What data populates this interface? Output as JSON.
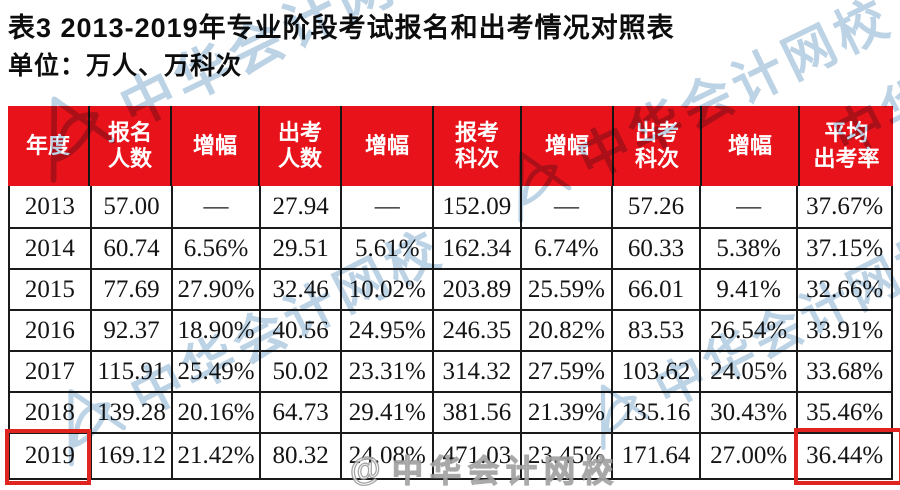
{
  "title": "表3  2013-2019年专业阶段考试报名和出考情况对照表",
  "subtitle": "单位：万人、万科次",
  "colors": {
    "header_red": "#e8121a",
    "highlight_red": "#e02420",
    "watermark_blue": "#8fb4d4",
    "border_dark": "#1a1a1a"
  },
  "table": {
    "columns": [
      "年度",
      "报名\n人数",
      "增幅",
      "出考\n人数",
      "增幅",
      "报考\n科次",
      "增幅",
      "出考\n科次",
      "增幅",
      "平均\n出考率"
    ],
    "rows": [
      [
        "2013",
        "57.00",
        "—",
        "27.94",
        "—",
        "152.09",
        "—",
        "57.26",
        "—",
        "37.67%"
      ],
      [
        "2014",
        "60.74",
        "6.56%",
        "29.51",
        "5.61%",
        "162.34",
        "6.74%",
        "60.33",
        "5.38%",
        "37.15%"
      ],
      [
        "2015",
        "77.69",
        "27.90%",
        "32.46",
        "10.02%",
        "203.89",
        "25.59%",
        "66.01",
        "9.41%",
        "32.66%"
      ],
      [
        "2016",
        "92.37",
        "18.90%",
        "40.56",
        "24.95%",
        "246.35",
        "20.82%",
        "83.53",
        "26.54%",
        "33.91%"
      ],
      [
        "2017",
        "115.91",
        "25.49%",
        "50.02",
        "23.31%",
        "314.32",
        "27.59%",
        "103.62",
        "24.05%",
        "33.68%"
      ],
      [
        "2018",
        "139.28",
        "20.16%",
        "64.73",
        "29.41%",
        "381.56",
        "21.39%",
        "135.16",
        "30.43%",
        "35.46%"
      ],
      [
        "2019",
        "169.12",
        "21.42%",
        "80.32",
        "24.08%",
        "471.03",
        "23.45%",
        "171.64",
        "27.00%",
        "36.44%"
      ]
    ],
    "highlights": [
      "2019",
      "36.44%"
    ]
  },
  "watermark": {
    "text": "中华会计网校",
    "weibo_text": "中华会计网校",
    "weibo_icon": "@"
  }
}
